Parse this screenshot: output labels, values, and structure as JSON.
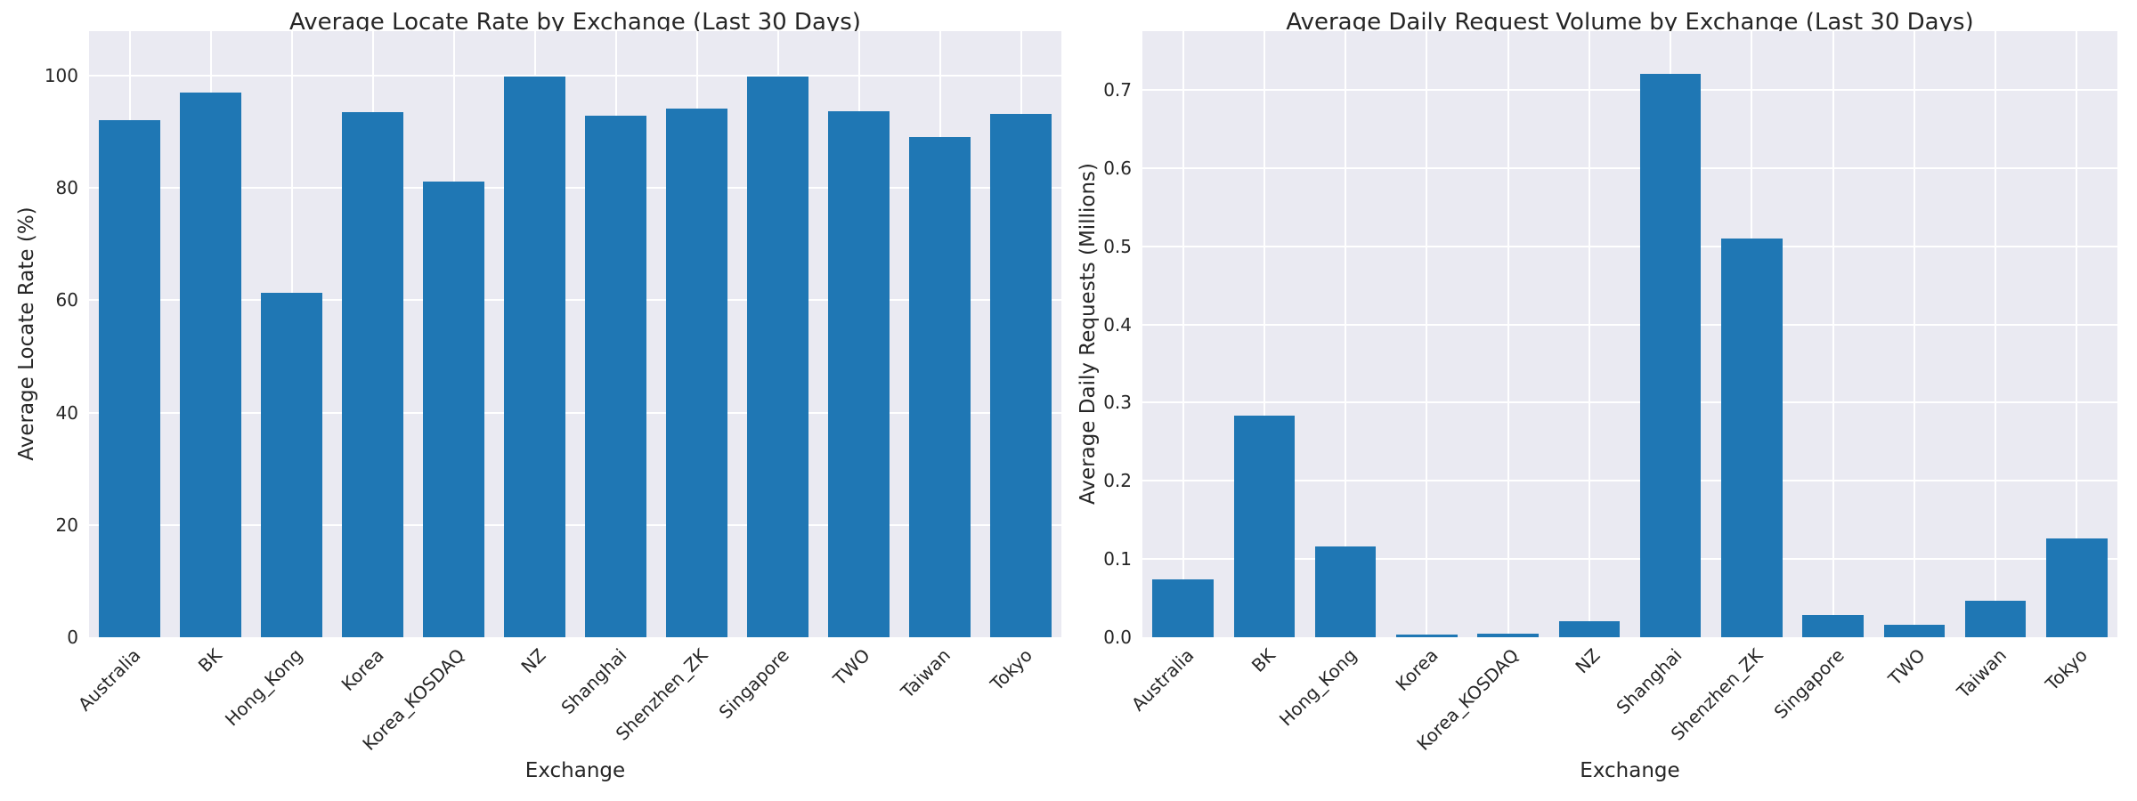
{
  "figure": {
    "background": "#ffffff",
    "plot_background": "#eaeaf2",
    "grid_color": "#ffffff",
    "bar_color": "#1f77b4",
    "text_color": "#262626"
  },
  "chart_data": [
    {
      "type": "bar",
      "title": "Average Locate Rate by Exchange (Last 30 Days)",
      "xlabel": "Exchange",
      "ylabel": "Average Locate Rate (%)",
      "categories": [
        "Australia",
        "BK",
        "Hong_Kong",
        "Korea",
        "Korea_KOSDAQ",
        "NZ",
        "Shanghai",
        "Shenzhen_ZK",
        "Singapore",
        "TWO",
        "Taiwan",
        "Tokyo"
      ],
      "values": [
        92.1,
        96.9,
        61.3,
        93.5,
        81.2,
        99.9,
        92.9,
        94.1,
        99.9,
        93.7,
        89.0,
        93.1
      ],
      "ylim": [
        0,
        107.9
      ],
      "yticks": [
        0,
        20,
        40,
        60,
        80,
        100
      ],
      "ytick_labels": [
        "0",
        "20",
        "40",
        "60",
        "80",
        "100"
      ],
      "grid": true,
      "legend": null,
      "x_tick_rotation": 45
    },
    {
      "type": "bar",
      "title": "Average Daily Request Volume by Exchange (Last 30 Days)",
      "xlabel": "Exchange",
      "ylabel": "Average Daily Requests (Millions)",
      "categories": [
        "Australia",
        "BK",
        "Hong_Kong",
        "Korea",
        "Korea_KOSDAQ",
        "NZ",
        "Shanghai",
        "Shenzhen_ZK",
        "Singapore",
        "TWO",
        "Taiwan",
        "Tokyo"
      ],
      "values": [
        0.074,
        0.283,
        0.116,
        0.003,
        0.0045,
        0.02,
        0.72,
        0.51,
        0.028,
        0.016,
        0.047,
        0.126
      ],
      "ylim": [
        0,
        0.775
      ],
      "yticks": [
        0,
        0.1,
        0.2,
        0.3,
        0.4,
        0.5,
        0.6,
        0.7
      ],
      "ytick_labels": [
        "0.0",
        "0.1",
        "0.2",
        "0.3",
        "0.4",
        "0.5",
        "0.6",
        "0.7"
      ],
      "grid": true,
      "legend": null,
      "x_tick_rotation": 45
    }
  ]
}
